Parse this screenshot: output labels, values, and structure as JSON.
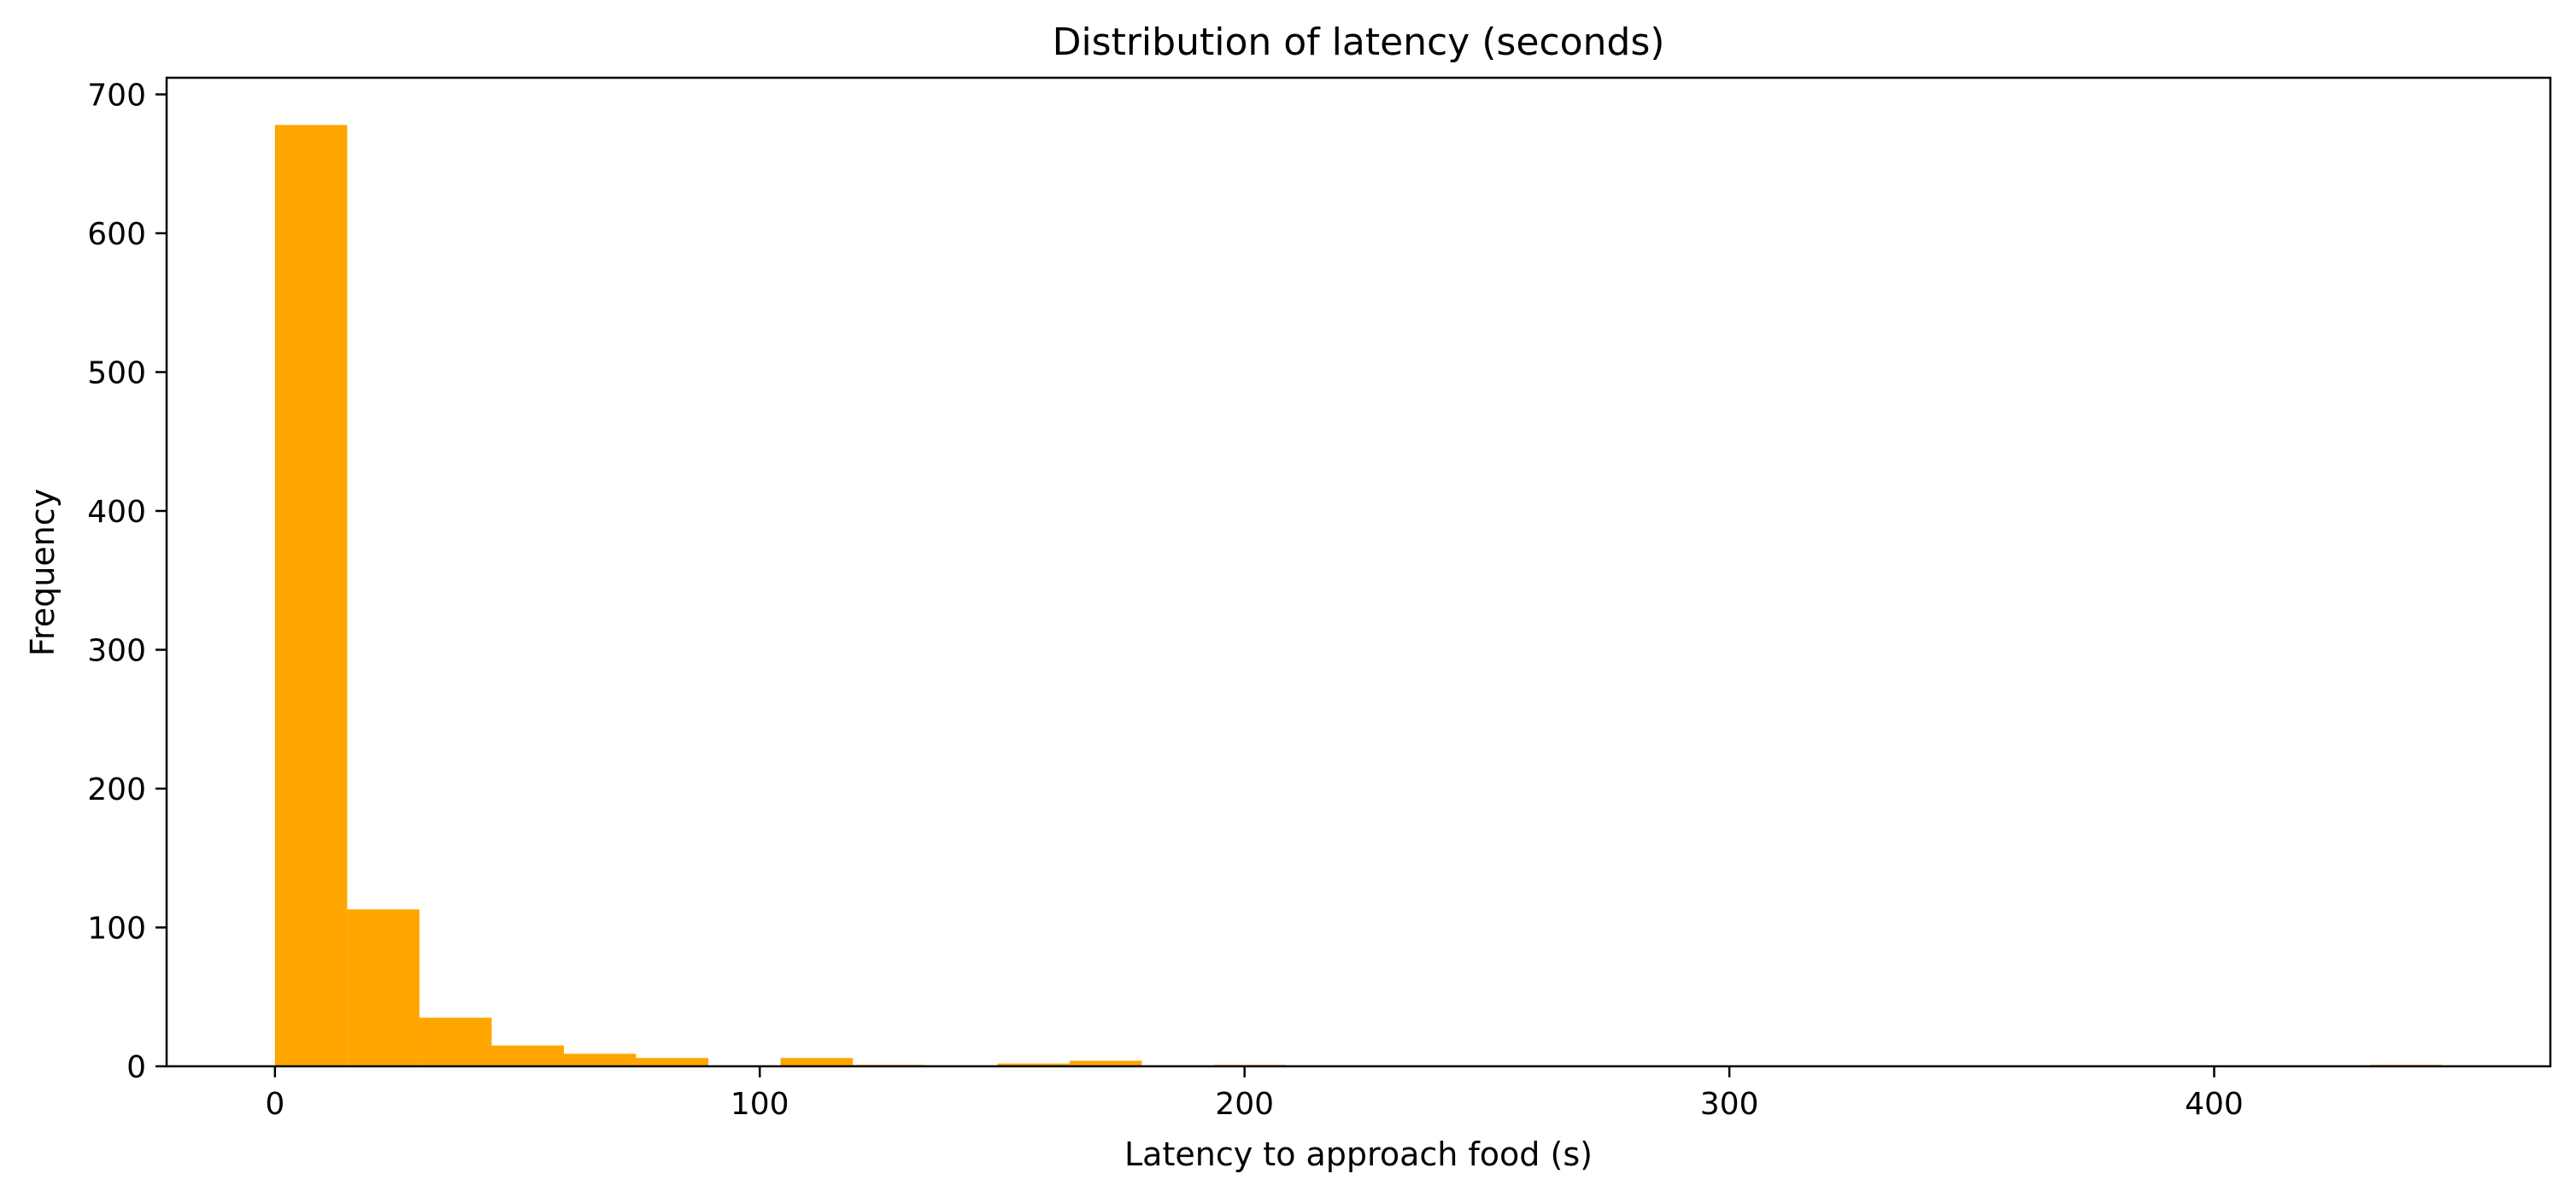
{
  "chart_data": {
    "type": "bar",
    "title": "Distribution of latency (seconds)",
    "xlabel": "Latency to approach food (s)",
    "ylabel": "Frequency",
    "bar_color": "#FFA500",
    "bins": [
      {
        "x0": 0,
        "x1": 14.9,
        "count": 678
      },
      {
        "x0": 14.9,
        "x1": 29.8,
        "count": 113
      },
      {
        "x0": 29.8,
        "x1": 44.7,
        "count": 35
      },
      {
        "x0": 44.7,
        "x1": 59.6,
        "count": 15
      },
      {
        "x0": 59.6,
        "x1": 74.5,
        "count": 9
      },
      {
        "x0": 74.5,
        "x1": 89.4,
        "count": 6
      },
      {
        "x0": 89.4,
        "x1": 104.3,
        "count": 0
      },
      {
        "x0": 104.3,
        "x1": 119.2,
        "count": 6
      },
      {
        "x0": 119.2,
        "x1": 134.1,
        "count": 1
      },
      {
        "x0": 134.1,
        "x1": 149.0,
        "count": 0
      },
      {
        "x0": 149.0,
        "x1": 163.9,
        "count": 2
      },
      {
        "x0": 163.9,
        "x1": 178.8,
        "count": 4
      },
      {
        "x0": 178.8,
        "x1": 193.7,
        "count": 0
      },
      {
        "x0": 193.7,
        "x1": 208.6,
        "count": 1
      },
      {
        "x0": 208.6,
        "x1": 223.5,
        "count": 0
      },
      {
        "x0": 223.5,
        "x1": 238.4,
        "count": 0
      },
      {
        "x0": 238.4,
        "x1": 253.3,
        "count": 0
      },
      {
        "x0": 253.3,
        "x1": 268.2,
        "count": 0
      },
      {
        "x0": 268.2,
        "x1": 283.1,
        "count": 0
      },
      {
        "x0": 283.1,
        "x1": 298.0,
        "count": 0
      },
      {
        "x0": 298.0,
        "x1": 312.9,
        "count": 0
      },
      {
        "x0": 312.9,
        "x1": 327.8,
        "count": 0
      },
      {
        "x0": 327.8,
        "x1": 342.7,
        "count": 0
      },
      {
        "x0": 342.7,
        "x1": 357.6,
        "count": 0
      },
      {
        "x0": 357.6,
        "x1": 372.5,
        "count": 0
      },
      {
        "x0": 372.5,
        "x1": 387.4,
        "count": 0
      },
      {
        "x0": 387.4,
        "x1": 402.3,
        "count": 0
      },
      {
        "x0": 402.3,
        "x1": 417.2,
        "count": 0
      },
      {
        "x0": 417.2,
        "x1": 432.1,
        "count": 0
      },
      {
        "x0": 432.1,
        "x1": 447.0,
        "count": 1
      }
    ],
    "xlim": [
      -22.35,
      469.35
    ],
    "ylim": [
      0,
      712
    ],
    "x_ticks": [
      0,
      100,
      200,
      300,
      400
    ],
    "y_ticks": [
      0,
      100,
      200,
      300,
      400,
      500,
      600,
      700
    ],
    "grid": false,
    "legend": "none"
  }
}
